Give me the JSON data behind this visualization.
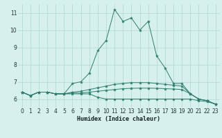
{
  "title": "",
  "xlabel": "Humidex (Indice chaleur)",
  "bg_color": "#d6f0ec",
  "grid_color": "#b0d8d0",
  "line_color": "#2e7d6e",
  "xlim": [
    -0.5,
    23.5
  ],
  "ylim": [
    5.5,
    11.5
  ],
  "xticks": [
    0,
    1,
    2,
    3,
    4,
    5,
    6,
    7,
    8,
    9,
    10,
    11,
    12,
    13,
    14,
    15,
    16,
    17,
    18,
    19,
    20,
    21,
    22,
    23
  ],
  "yticks": [
    6,
    7,
    8,
    9,
    10,
    11
  ],
  "series": [
    {
      "x": [
        0,
        1,
        2,
        3,
        4,
        5,
        6,
        7,
        8,
        9,
        10,
        11,
        12,
        13,
        14,
        15,
        16,
        17,
        18,
        19,
        20,
        21,
        22,
        23
      ],
      "y": [
        6.4,
        6.2,
        6.4,
        6.4,
        6.3,
        6.3,
        6.9,
        7.0,
        7.5,
        8.8,
        9.4,
        11.2,
        10.5,
        10.7,
        10.0,
        10.5,
        8.5,
        7.8,
        6.9,
        6.9,
        6.3,
        6.0,
        5.9,
        5.7
      ]
    },
    {
      "x": [
        0,
        1,
        2,
        3,
        4,
        5,
        6,
        7,
        8,
        9,
        10,
        11,
        12,
        13,
        14,
        15,
        16,
        17,
        18,
        19,
        20,
        21,
        22,
        23
      ],
      "y": [
        6.4,
        6.2,
        6.4,
        6.4,
        6.3,
        6.3,
        6.4,
        6.45,
        6.55,
        6.65,
        6.75,
        6.85,
        6.9,
        6.95,
        6.95,
        6.95,
        6.9,
        6.85,
        6.8,
        6.75,
        6.3,
        6.0,
        5.9,
        5.7
      ]
    },
    {
      "x": [
        0,
        1,
        2,
        3,
        4,
        5,
        6,
        7,
        8,
        9,
        10,
        11,
        12,
        13,
        14,
        15,
        16,
        17,
        18,
        19,
        20,
        21,
        22,
        23
      ],
      "y": [
        6.4,
        6.2,
        6.4,
        6.4,
        6.3,
        6.3,
        6.35,
        6.35,
        6.4,
        6.45,
        6.5,
        6.55,
        6.6,
        6.62,
        6.63,
        6.63,
        6.62,
        6.6,
        6.58,
        6.55,
        6.3,
        6.0,
        5.9,
        5.7
      ]
    },
    {
      "x": [
        0,
        1,
        2,
        3,
        4,
        5,
        6,
        7,
        8,
        9,
        10,
        11,
        12,
        13,
        14,
        15,
        16,
        17,
        18,
        19,
        20,
        21,
        22,
        23
      ],
      "y": [
        6.4,
        6.2,
        6.4,
        6.4,
        6.3,
        6.3,
        6.3,
        6.3,
        6.3,
        6.1,
        6.0,
        6.0,
        6.0,
        6.0,
        6.0,
        6.0,
        6.0,
        6.0,
        6.0,
        6.0,
        6.0,
        5.9,
        5.85,
        5.7
      ]
    }
  ]
}
